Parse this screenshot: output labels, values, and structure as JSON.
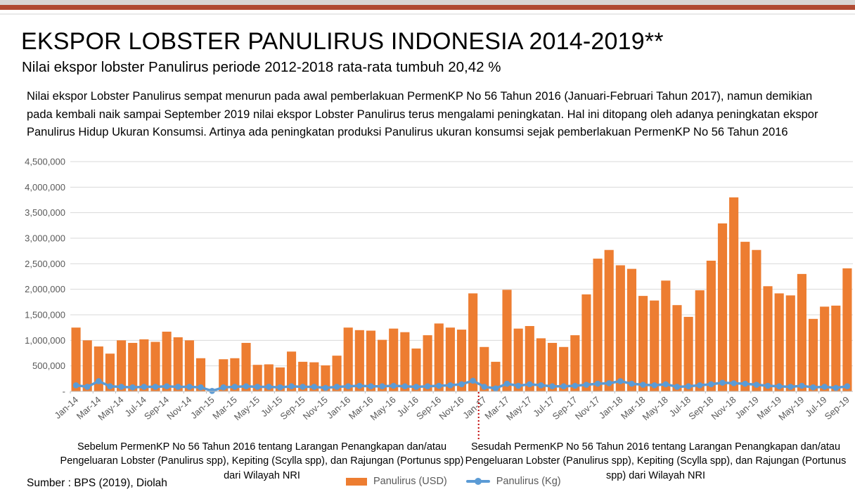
{
  "slide": {
    "title": "EKSPOR LOBSTER PANULIRUS INDONESIA 2014-2019**",
    "subtitle": "Nilai ekspor lobster Panulirus periode 2012-2018 rata-rata tumbuh 20,42 %",
    "paragraph": "Nilai ekspor Lobster Panulirus sempat menurun pada awal pemberlakuan PermenKP No 56 Tahun 2016 (Januari-Februari Tahun 2017), namun demikian pada kembali naik sampai September 2019 nilai ekspor Lobster Panulirus terus mengalami peningkatan. Hal ini ditopang oleh adanya peningkatan ekspor Panulirus Hidup Ukuran Konsumsi. Artinya ada peningkatan produksi Panulirus ukuran konsumsi sejak pemberlakuan PermenKP No 56 Tahun 2016",
    "annotation_before": "Sebelum PermenKP No 56 Tahun 2016 tentang Larangan Penangkapan dan/atau Pengeluaran Lobster (Panulirus spp), Kepiting (Scylla spp), dan Rajungan (Portunus spp) dari Wilayah NRI",
    "annotation_after": "Sesudah PermenKP No 56 Tahun 2016 tentang Larangan Penangkapan dan/atau Pengeluaran Lobster (Panulirus spp), Kepiting (Scylla spp), dan Rajungan (Portunus spp) dari Wilayah NRI",
    "source": "Sumber : BPS (2019), Diolah"
  },
  "colors": {
    "accent_red": "#b04b33",
    "top_strip_gray": "#d9d7d5",
    "header_line": "#e9e9e9",
    "bar_orange": "#ed7d31",
    "line_blue": "#5b9bd5",
    "gridline": "#d9d9d9",
    "axis_line": "#bfbfbf",
    "axis_text": "#595959",
    "divider_red": "#c00000"
  },
  "chart_data": {
    "type": "bar",
    "title": "",
    "xlabel": "",
    "ylabel": "",
    "grid": true,
    "legend_position": "bottom",
    "ylim": [
      0,
      4500000
    ],
    "y_tick_labels": [
      "4,500,000",
      "4,000,000",
      "3,500,000",
      "3,000,000",
      "2,500,000",
      "2,000,000",
      "1,500,000",
      "1,000,000",
      "500,000",
      "-"
    ],
    "x_tick_every": 2,
    "divider": {
      "at_category": "Jan-17",
      "style": "red-dotted"
    },
    "categories": [
      "Jan-14",
      "Feb-14",
      "Mar-14",
      "Apr-14",
      "May-14",
      "Jun-14",
      "Jul-14",
      "Aug-14",
      "Sep-14",
      "Oct-14",
      "Nov-14",
      "Dec-14",
      "Jan-15",
      "Feb-15",
      "Mar-15",
      "Apr-15",
      "May-15",
      "Jun-15",
      "Jul-15",
      "Aug-15",
      "Sep-15",
      "Oct-15",
      "Nov-15",
      "Dec-15",
      "Jan-16",
      "Feb-16",
      "Mar-16",
      "Apr-16",
      "May-16",
      "Jun-16",
      "Jul-16",
      "Aug-16",
      "Sep-16",
      "Oct-16",
      "Nov-16",
      "Dec-16",
      "Jan-17",
      "Feb-17",
      "Mar-17",
      "Apr-17",
      "May-17",
      "Jun-17",
      "Jul-17",
      "Aug-17",
      "Sep-17",
      "Oct-17",
      "Nov-17",
      "Dec-17",
      "Jan-18",
      "Feb-18",
      "Mar-18",
      "Apr-18",
      "May-18",
      "Jun-18",
      "Jul-18",
      "Aug-18",
      "Sep-18",
      "Oct-18",
      "Nov-18",
      "Dec-18",
      "Jan-19",
      "Feb-19",
      "Mar-19",
      "Apr-19",
      "May-19",
      "Jun-19",
      "Jul-19",
      "Aug-19",
      "Sep-19"
    ],
    "series": [
      {
        "name": "Panulirus (USD)",
        "type": "bar",
        "color": "#ed7d31",
        "values": [
          1250000,
          1000000,
          880000,
          740000,
          1000000,
          950000,
          1020000,
          970000,
          1170000,
          1060000,
          1000000,
          650000,
          50000,
          630000,
          650000,
          950000,
          520000,
          530000,
          470000,
          780000,
          580000,
          570000,
          510000,
          700000,
          1250000,
          1200000,
          1190000,
          1010000,
          1230000,
          1160000,
          840000,
          1100000,
          1330000,
          1250000,
          1210000,
          1920000,
          870000,
          580000,
          1990000,
          1230000,
          1280000,
          1040000,
          950000,
          870000,
          1100000,
          1900000,
          2600000,
          2770000,
          2470000,
          2400000,
          1870000,
          1780000,
          2170000,
          1690000,
          1460000,
          1980000,
          2560000,
          3290000,
          3800000,
          2930000,
          2770000,
          2060000,
          1920000,
          1880000,
          2300000,
          1420000,
          1660000,
          1680000,
          2410000
        ]
      },
      {
        "name": "Panulirus (Kg)",
        "type": "line",
        "color": "#5b9bd5",
        "values": [
          120000,
          90000,
          200000,
          100000,
          90000,
          80000,
          90000,
          90000,
          100000,
          90000,
          90000,
          80000,
          10000,
          80000,
          90000,
          100000,
          90000,
          90000,
          80000,
          100000,
          90000,
          90000,
          70000,
          90000,
          100000,
          110000,
          100000,
          100000,
          110000,
          100000,
          90000,
          100000,
          110000,
          120000,
          140000,
          210000,
          90000,
          60000,
          150000,
          110000,
          140000,
          120000,
          100000,
          100000,
          110000,
          130000,
          150000,
          160000,
          200000,
          150000,
          130000,
          120000,
          140000,
          90000,
          100000,
          120000,
          140000,
          170000,
          160000,
          150000,
          130000,
          110000,
          100000,
          90000,
          110000,
          80000,
          90000,
          70000,
          100000
        ]
      }
    ]
  }
}
